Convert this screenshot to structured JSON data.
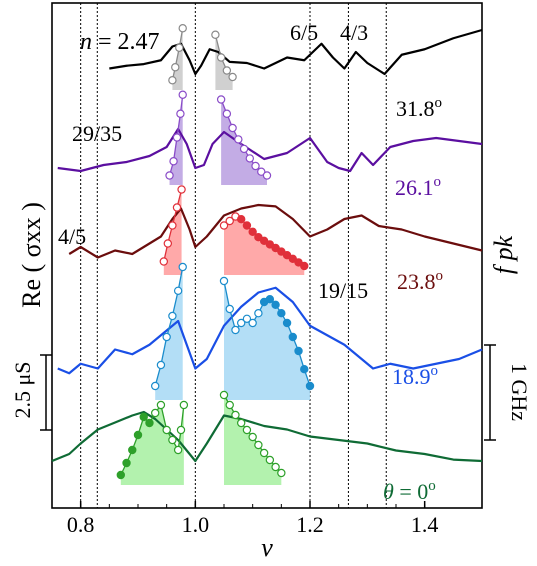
{
  "chart_data": {
    "type": "line",
    "xlabel": "ν",
    "ylabel": "Re ( σxx )",
    "xlim": [
      0.75,
      1.5
    ],
    "x_ticks": [
      0.8,
      1.0,
      1.2,
      1.4
    ],
    "x_tick_labels": [
      "0.8",
      "1.0",
      "1.2",
      "1.4"
    ],
    "right_label": "f pk",
    "scale_bars": {
      "left": "2.5 μS",
      "right": "1 GHz"
    },
    "annotations": {
      "n_label": "n",
      "n_value": "= 2.47",
      "fractions": [
        "6/5",
        "4/3",
        "29/35",
        "4/5",
        "19/15"
      ]
    },
    "vertical_lines_nu": [
      0.8,
      0.829,
      1.0,
      1.2,
      1.267,
      1.333
    ],
    "colors": {
      "c31": "#000000",
      "c26": "#5b0fa0",
      "c23": "#6b0d0d",
      "c18": "#1a4fe6",
      "c0": "#0f6b35",
      "fill31": "#c8c8c8",
      "fill26": "#b89de0",
      "fill23": "#ff9a9a",
      "fill18": "#a6d8f5",
      "fill0": "#a6f0a0",
      "dots31": "#8a8a8a",
      "dots26": "#8a4cc8",
      "dots23": "#e0303a",
      "dots18": "#1a8ccc",
      "dots0": "#2ea02a"
    },
    "series": [
      {
        "name": "31.8°",
        "angle": "31.8",
        "color_key": "c31",
        "x": [
          0.85,
          0.88,
          0.91,
          0.94,
          0.96,
          0.975,
          0.99,
          1.0,
          1.01,
          1.025,
          1.04,
          1.06,
          1.09,
          1.12,
          1.16,
          1.19,
          1.22,
          1.24,
          1.26,
          1.28,
          1.3,
          1.33,
          1.36,
          1.4,
          1.45,
          1.5
        ],
        "y": [
          0.3,
          0.35,
          0.38,
          0.45,
          0.7,
          0.75,
          0.45,
          0.2,
          0.35,
          0.65,
          0.6,
          0.42,
          0.4,
          0.3,
          0.5,
          0.45,
          0.75,
          0.5,
          0.3,
          0.6,
          0.4,
          0.2,
          0.55,
          0.65,
          0.85,
          1.0
        ]
      },
      {
        "name": "26.1°",
        "angle": "26.1",
        "color_key": "c26",
        "x": [
          0.76,
          0.8,
          0.84,
          0.88,
          0.92,
          0.95,
          0.97,
          0.985,
          1.0,
          1.015,
          1.03,
          1.05,
          1.08,
          1.12,
          1.16,
          1.2,
          1.23,
          1.25,
          1.27,
          1.29,
          1.31,
          1.34,
          1.38,
          1.42,
          1.46,
          1.5
        ],
        "y": [
          0.2,
          0.15,
          0.25,
          0.3,
          0.4,
          0.55,
          0.85,
          0.6,
          0.2,
          0.25,
          0.6,
          0.8,
          0.6,
          0.35,
          0.45,
          0.7,
          0.3,
          0.2,
          0.15,
          0.45,
          0.25,
          0.55,
          0.65,
          0.7,
          0.65,
          0.6
        ]
      },
      {
        "name": "23.8°",
        "angle": "23.8",
        "color_key": "c23",
        "x": [
          0.78,
          0.8,
          0.83,
          0.86,
          0.89,
          0.92,
          0.94,
          0.96,
          0.975,
          0.99,
          1.0,
          1.02,
          1.05,
          1.08,
          1.11,
          1.14,
          1.17,
          1.2,
          1.23,
          1.26,
          1.29,
          1.32,
          1.36,
          1.4,
          1.45,
          1.5
        ],
        "y": [
          0.2,
          0.3,
          0.15,
          0.25,
          0.2,
          0.35,
          0.45,
          0.7,
          0.85,
          0.55,
          0.3,
          0.45,
          0.75,
          0.85,
          0.9,
          0.88,
          0.7,
          0.45,
          0.55,
          0.7,
          0.75,
          0.6,
          0.55,
          0.45,
          0.35,
          0.25
        ]
      },
      {
        "name": "18.9°",
        "angle": "18.9",
        "color_key": "c18",
        "x": [
          0.76,
          0.78,
          0.8,
          0.83,
          0.86,
          0.89,
          0.92,
          0.95,
          0.97,
          0.985,
          1.0,
          1.02,
          1.05,
          1.08,
          1.11,
          1.14,
          1.17,
          1.2,
          1.23,
          1.26,
          1.29,
          1.31,
          1.34,
          1.38,
          1.42,
          1.46,
          1.5
        ],
        "y": [
          0.1,
          0.05,
          0.15,
          0.1,
          0.3,
          0.25,
          0.35,
          0.5,
          0.6,
          0.35,
          0.1,
          0.2,
          0.55,
          0.75,
          0.9,
          0.95,
          0.8,
          0.55,
          0.45,
          0.35,
          0.2,
          0.1,
          0.15,
          0.1,
          0.15,
          0.2,
          0.3
        ]
      },
      {
        "name": "θ = 0°",
        "angle": "0",
        "color_key": "c0",
        "x": [
          0.75,
          0.78,
          0.8,
          0.83,
          0.86,
          0.89,
          0.91,
          0.93,
          0.95,
          0.97,
          0.99,
          1.0,
          1.02,
          1.05,
          1.08,
          1.12,
          1.16,
          1.2,
          1.25,
          1.3,
          1.35,
          1.4,
          1.45,
          1.5
        ],
        "y": [
          0.1,
          0.2,
          0.35,
          0.55,
          0.65,
          0.75,
          0.8,
          0.7,
          0.55,
          0.4,
          0.2,
          0.1,
          0.35,
          0.75,
          0.7,
          0.6,
          0.55,
          0.45,
          0.4,
          0.35,
          0.25,
          0.2,
          0.12,
          0.1
        ]
      }
    ],
    "scatter_groups": [
      {
        "series": "31.8°",
        "fill_key": "fill31",
        "dot_key": "dots31",
        "left": {
          "x": [
            0.96,
            0.965,
            0.972,
            0.978
          ],
          "y": [
            0.15,
            0.35,
            0.65,
            0.95
          ],
          "filled": [
            false,
            false,
            false,
            false
          ]
        },
        "right": {
          "x": [
            1.035,
            1.045,
            1.055,
            1.065
          ],
          "y": [
            0.85,
            0.5,
            0.3,
            0.2
          ],
          "filled": [
            false,
            false,
            false,
            false
          ]
        }
      },
      {
        "series": "26.1°",
        "fill_key": "fill26",
        "dot_key": "dots26",
        "left": {
          "x": [
            0.955,
            0.962,
            0.968,
            0.974,
            0.978
          ],
          "y": [
            0.1,
            0.25,
            0.5,
            0.75,
            0.95
          ],
          "filled": [
            false,
            false,
            false,
            false,
            false
          ]
        },
        "right": {
          "x": [
            1.045,
            1.055,
            1.065,
            1.075,
            1.085,
            1.095,
            1.105,
            1.115,
            1.125
          ],
          "y": [
            0.9,
            0.75,
            0.6,
            0.48,
            0.38,
            0.28,
            0.2,
            0.14,
            0.1
          ],
          "filled": [
            false,
            false,
            false,
            false,
            false,
            false,
            false,
            false,
            false
          ]
        }
      },
      {
        "series": "23.8°",
        "fill_key": "fill23",
        "dot_key": "dots23",
        "left": {
          "x": [
            0.945,
            0.952,
            0.96,
            0.968,
            0.976
          ],
          "y": [
            0.15,
            0.35,
            0.55,
            0.75,
            0.95
          ],
          "filled": [
            false,
            false,
            false,
            false,
            false
          ]
        },
        "right": {
          "x": [
            1.05,
            1.06,
            1.07,
            1.08,
            1.09,
            1.1,
            1.11,
            1.12,
            1.13,
            1.14,
            1.15,
            1.16,
            1.17,
            1.18,
            1.19
          ],
          "y": [
            0.55,
            0.6,
            0.65,
            0.62,
            0.55,
            0.48,
            0.42,
            0.38,
            0.34,
            0.3,
            0.26,
            0.22,
            0.18,
            0.14,
            0.1
          ],
          "filled": [
            false,
            false,
            false,
            true,
            true,
            true,
            true,
            true,
            true,
            true,
            true,
            true,
            true,
            true,
            true
          ]
        }
      },
      {
        "series": "18.9°",
        "fill_key": "fill18",
        "dot_key": "dots18",
        "left": {
          "x": [
            0.93,
            0.94,
            0.95,
            0.96,
            0.97,
            0.978
          ],
          "y": [
            0.1,
            0.25,
            0.45,
            0.6,
            0.78,
            0.95
          ],
          "filled": [
            false,
            false,
            false,
            false,
            false,
            false
          ]
        },
        "right": {
          "x": [
            1.05,
            1.06,
            1.07,
            1.08,
            1.09,
            1.1,
            1.11,
            1.12,
            1.13,
            1.14,
            1.15,
            1.16,
            1.17,
            1.18,
            1.19,
            1.2
          ],
          "y": [
            0.85,
            0.65,
            0.5,
            0.55,
            0.58,
            0.55,
            0.62,
            0.7,
            0.72,
            0.68,
            0.62,
            0.55,
            0.45,
            0.35,
            0.22,
            0.1
          ],
          "filled": [
            false,
            false,
            false,
            false,
            false,
            false,
            false,
            true,
            true,
            true,
            true,
            true,
            true,
            true,
            true,
            true
          ]
        }
      },
      {
        "series": "θ = 0°",
        "fill_key": "fill0",
        "dot_key": "dots0",
        "left": {
          "x": [
            0.87,
            0.88,
            0.89,
            0.9,
            0.91,
            0.92,
            0.93,
            0.94,
            0.95,
            0.96,
            0.97,
            0.975,
            0.98
          ],
          "y": [
            0.1,
            0.22,
            0.35,
            0.5,
            0.68,
            0.62,
            0.72,
            0.8,
            0.55,
            0.45,
            0.35,
            0.55,
            0.8
          ],
          "filled": [
            true,
            true,
            true,
            true,
            true,
            true,
            false,
            false,
            false,
            false,
            false,
            false,
            false
          ]
        },
        "right": {
          "x": [
            1.05,
            1.06,
            1.07,
            1.08,
            1.09,
            1.1,
            1.11,
            1.12,
            1.13,
            1.14,
            1.15
          ],
          "y": [
            0.9,
            0.8,
            0.7,
            0.62,
            0.55,
            0.48,
            0.4,
            0.32,
            0.25,
            0.18,
            0.12
          ],
          "filled": [
            false,
            false,
            false,
            false,
            false,
            false,
            false,
            false,
            false,
            false,
            false
          ]
        }
      }
    ]
  }
}
